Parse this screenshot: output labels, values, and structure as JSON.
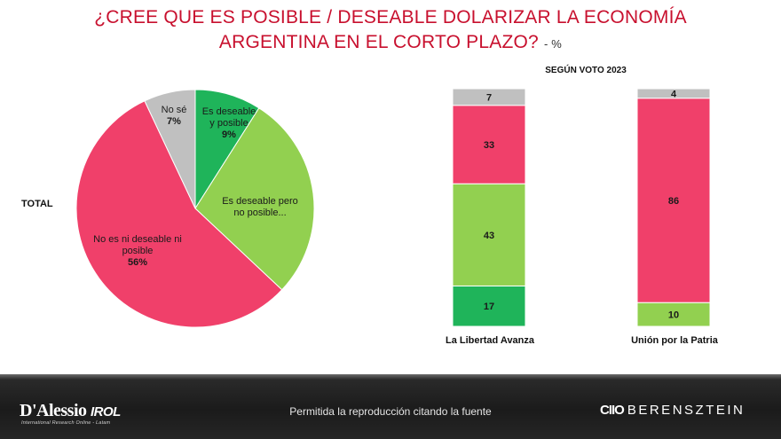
{
  "title": {
    "line1": "¿CREE QUE ES POSIBLE / DESEABLE DOLARIZAR LA ECONOMÍA",
    "line2": "ARGENTINA EN EL CORTO PLAZO?",
    "unit": "- %"
  },
  "total_label": "TOTAL",
  "section_title": "SEGÚN VOTO 2023",
  "colors": {
    "deseable_posible": "#1fb45a",
    "deseable_no_posible": "#92d050",
    "ni_deseable": "#f0406a",
    "no_se": "#c0c0c0"
  },
  "chart_data": [
    {
      "type": "pie",
      "title": "TOTAL",
      "slices": [
        {
          "key": "deseable_posible",
          "label_lines": [
            "Es deseable",
            "y posible"
          ],
          "value": 9,
          "value_label": "9%"
        },
        {
          "key": "deseable_no_posible",
          "label_lines": [
            "Es deseable pero",
            "no posible..."
          ],
          "value": 28,
          "value_label": ""
        },
        {
          "key": "ni_deseable",
          "label_lines": [
            "No es ni deseable ni",
            "posible"
          ],
          "value": 56,
          "value_label": "56%"
        },
        {
          "key": "no_se",
          "label_lines": [
            "No sé"
          ],
          "value": 7,
          "value_label": "7%"
        }
      ]
    },
    {
      "type": "bar",
      "stacked": true,
      "title": "SEGÚN VOTO 2023",
      "categories": [
        "La Libertad Avanza",
        "Unión por la Patria"
      ],
      "series": [
        {
          "key": "deseable_posible",
          "values": [
            17,
            0
          ]
        },
        {
          "key": "deseable_no_posible",
          "values": [
            43,
            10
          ]
        },
        {
          "key": "ni_deseable",
          "values": [
            33,
            86
          ]
        },
        {
          "key": "no_se",
          "values": [
            7,
            4
          ]
        }
      ]
    }
  ],
  "footer": {
    "brand_left": "D'Alessio",
    "brand_left_suffix": "IROL",
    "brand_left_sub": "International Research Online - Latam",
    "center_text": "Permitida la reproducción citando la fuente",
    "brand_right_glyph": "CIIO",
    "brand_right": "BERENSZTEIN"
  }
}
